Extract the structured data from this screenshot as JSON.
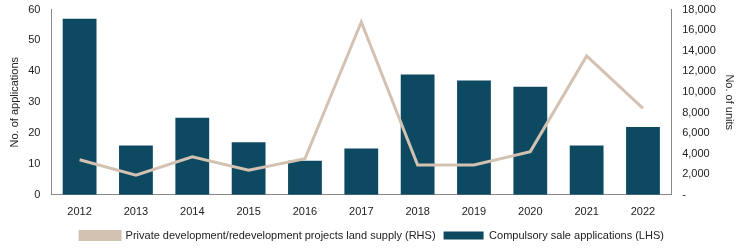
{
  "chart_data": {
    "type": "bar",
    "categories": [
      "2012",
      "2013",
      "2014",
      "2015",
      "2016",
      "2017",
      "2018",
      "2019",
      "2020",
      "2021",
      "2022"
    ],
    "series": [
      {
        "name": "Compulsory sale applications (LHS)",
        "type": "bar",
        "color": "#0d4a62",
        "axis": "y",
        "values": [
          57,
          16,
          25,
          17,
          11,
          15,
          39,
          37,
          35,
          16,
          22
        ]
      },
      {
        "name": "Private development/redevelopment projects land supply (RHS)",
        "type": "line",
        "color": "#d3c2b2",
        "axis": "y2",
        "values": [
          3400,
          1900,
          3700,
          2400,
          3500,
          16800,
          2900,
          2900,
          4200,
          13500,
          8400
        ]
      }
    ],
    "y_label": "No. of applications",
    "y2_label": "No. of units",
    "ylim": [
      0,
      60
    ],
    "yticks": [
      0,
      10,
      20,
      30,
      40,
      50,
      60
    ],
    "y2lim": [
      0,
      18000
    ],
    "y2ticks": [
      {
        "value": 0,
        "label": "-"
      },
      {
        "value": 2000,
        "label": "2,000"
      },
      {
        "value": 4000,
        "label": "4,000"
      },
      {
        "value": 6000,
        "label": "6,000"
      },
      {
        "value": 8000,
        "label": "8,000"
      },
      {
        "value": 10000,
        "label": "10,000"
      },
      {
        "value": 12000,
        "label": "12,000"
      },
      {
        "value": 14000,
        "label": "14,000"
      },
      {
        "value": 16000,
        "label": "16,000"
      },
      {
        "value": 18000,
        "label": "18,000"
      }
    ],
    "grid": false,
    "legend": "bottom"
  }
}
